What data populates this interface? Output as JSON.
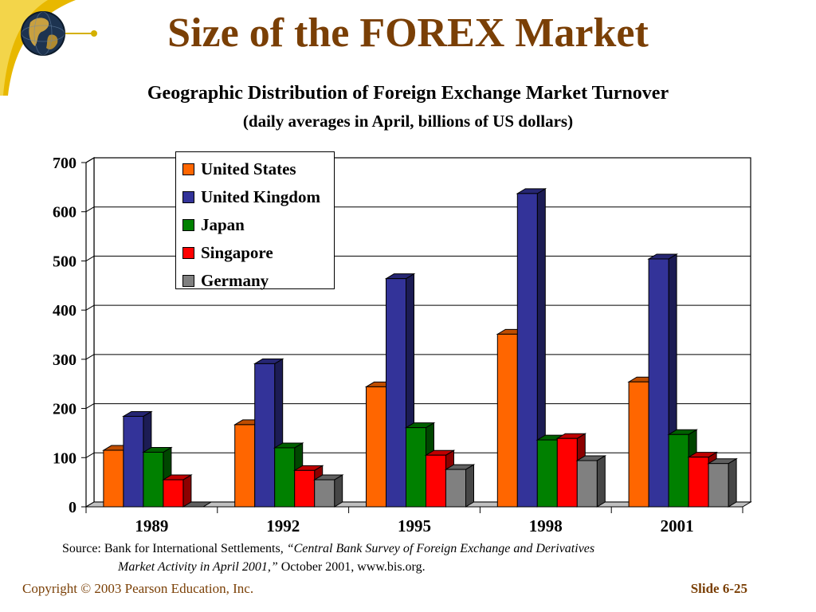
{
  "slide": {
    "title": "Size of the FOREX Market",
    "subtitle_line1": "Geographic Distribution of Foreign Exchange Market Turnover",
    "subtitle_line2": "(daily averages in April, billions of US dollars)",
    "source_prefix": "Source: Bank for International Settlements, ",
    "source_italic1": "“Central Bank Survey of Foreign Exchange and Derivatives",
    "source_italic2": "Market Activity in April 2001,”",
    "source_suffix": " October 2001, www.bis.org.",
    "copyright": "Copyright © 2003 Pearson Education, Inc.",
    "slide_number": "Slide 6-25",
    "colors": {
      "title": "#7a3f05",
      "corner_arc": "#e8b800"
    },
    "logo_icon": "globe-icon"
  },
  "chart_data": {
    "type": "bar",
    "categories": [
      "1989",
      "1992",
      "1995",
      "1998",
      "2001"
    ],
    "series": [
      {
        "name": "United States",
        "color": "#ff6600",
        "values": [
          115,
          167,
          244,
          351,
          254
        ]
      },
      {
        "name": "United Kingdom",
        "color": "#333399",
        "values": [
          184,
          291,
          464,
          637,
          504
        ]
      },
      {
        "name": "Japan",
        "color": "#008000",
        "values": [
          111,
          120,
          161,
          136,
          147
        ]
      },
      {
        "name": "Singapore",
        "color": "#ff0000",
        "values": [
          55,
          74,
          105,
          139,
          101
        ]
      },
      {
        "name": "Germany",
        "color": "#808080",
        "values": [
          0,
          55,
          76,
          94,
          88
        ]
      }
    ],
    "yticks": [
      "0",
      "100",
      "200",
      "300",
      "400",
      "500",
      "600",
      "700"
    ],
    "ylim": [
      0,
      700
    ],
    "grid": true,
    "style": "3d-clustered-column",
    "legend_position": "top-left-inside"
  }
}
